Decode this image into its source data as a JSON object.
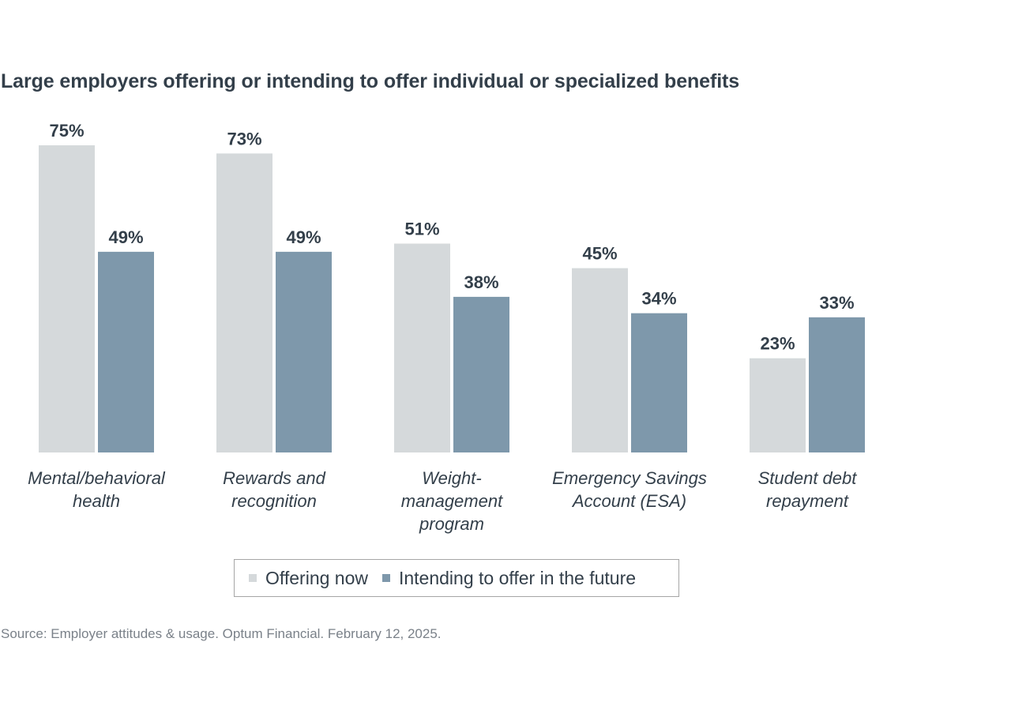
{
  "chart_data": {
    "type": "bar",
    "title": "Large employers offering or intending to offer individual or specialized benefits",
    "xlabel": "",
    "ylabel": "",
    "ylim": [
      0,
      100
    ],
    "grid": false,
    "legend_position": "bottom-center",
    "categories": [
      [
        "Mental/behavioral",
        "health"
      ],
      [
        "Rewards and",
        "recognition"
      ],
      [
        "Weight-",
        "management",
        "program"
      ],
      [
        "Emergency Savings",
        "Account (ESA)"
      ],
      [
        "Student debt",
        "repayment"
      ]
    ],
    "series": [
      {
        "name": "Offering now",
        "color": "#d5d9db",
        "values": [
          75,
          73,
          51,
          45,
          23
        ],
        "labels": [
          "75%",
          "73%",
          "51%",
          "45%",
          "23%"
        ]
      },
      {
        "name": "Intending to offer in the future",
        "color": "#7e98ab",
        "values": [
          49,
          49,
          38,
          34,
          33
        ],
        "labels": [
          "49%",
          "49%",
          "38%",
          "34%",
          "33%"
        ]
      }
    ]
  },
  "source": "Source: Employer attitudes & usage. Optum Financial. February 12, 2025."
}
